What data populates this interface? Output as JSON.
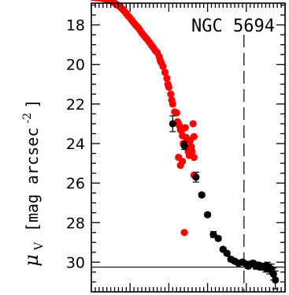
{
  "chart_data": {
    "type": "scatter",
    "title": "NGC 5694",
    "ylabel": {
      "symbol": "μ",
      "subscript": "V",
      "unit": "[mag arcsec",
      "exponent": "-2",
      "close": "]"
    },
    "yticks": [
      "18",
      "20",
      "22",
      "24",
      "26",
      "28",
      "30"
    ],
    "ytick_values": [
      18,
      20,
      22,
      24,
      26,
      28,
      30
    ],
    "ylim": [
      16.9,
      31.5
    ],
    "y_inverted": true,
    "xlim": [
      0,
      1
    ],
    "x_tick_labels": "none",
    "reference_lines": {
      "horizontal_y": 30.25,
      "vertical_dashed_x": 0.788
    },
    "colors": {
      "series_a": "#ff0000",
      "series_b": "#000000"
    },
    "series": [
      {
        "color": "#ff0000",
        "points": [
          [
            0.005,
            16.6
          ],
          [
            0.015,
            16.61
          ],
          [
            0.025,
            16.62
          ],
          [
            0.035,
            16.63
          ],
          [
            0.045,
            16.63
          ],
          [
            0.055,
            16.65
          ],
          [
            0.065,
            16.67
          ],
          [
            0.075,
            16.7
          ],
          [
            0.085,
            16.72
          ],
          [
            0.095,
            16.75
          ],
          [
            0.105,
            16.8
          ],
          [
            0.115,
            16.86
          ],
          [
            0.125,
            16.93
          ],
          [
            0.135,
            17.0
          ],
          [
            0.15,
            17.1
          ],
          [
            0.16,
            17.2
          ],
          [
            0.17,
            17.3
          ],
          [
            0.18,
            17.42
          ],
          [
            0.19,
            17.55
          ],
          [
            0.2,
            17.65
          ],
          [
            0.21,
            17.78
          ],
          [
            0.22,
            17.9
          ],
          [
            0.23,
            18.02
          ],
          [
            0.24,
            18.12
          ],
          [
            0.25,
            18.25
          ],
          [
            0.26,
            18.4
          ],
          [
            0.27,
            18.52
          ],
          [
            0.28,
            18.65
          ],
          [
            0.29,
            18.75
          ],
          [
            0.3,
            18.88
          ],
          [
            0.31,
            19.02
          ],
          [
            0.32,
            19.15
          ],
          [
            0.33,
            19.3
          ],
          [
            0.34,
            19.4
          ],
          [
            0.35,
            19.6
          ],
          [
            0.355,
            19.78
          ],
          [
            0.36,
            19.9
          ],
          [
            0.37,
            20.1
          ],
          [
            0.38,
            20.4
          ],
          [
            0.39,
            20.7
          ],
          [
            0.395,
            21.0
          ],
          [
            0.4,
            21.15
          ],
          [
            0.41,
            21.5
          ],
          [
            0.415,
            21.8
          ],
          [
            0.42,
            22.0
          ],
          [
            0.43,
            22.4
          ],
          [
            0.44,
            22.45
          ],
          [
            0.445,
            22.9
          ],
          [
            0.45,
            23.0
          ],
          [
            0.455,
            23.1
          ],
          [
            0.46,
            23.3
          ],
          [
            0.465,
            23.35
          ],
          [
            0.47,
            23.6
          ],
          [
            0.475,
            24.0
          ],
          [
            0.48,
            24.05
          ],
          [
            0.485,
            23.2
          ],
          [
            0.49,
            23.7
          ],
          [
            0.495,
            24.2
          ],
          [
            0.5,
            24.4
          ],
          [
            0.505,
            24.6
          ],
          [
            0.51,
            23.85
          ],
          [
            0.515,
            24.15
          ],
          [
            0.52,
            24.4
          ],
          [
            0.525,
            23.0
          ],
          [
            0.53,
            23.65
          ],
          [
            0.45,
            24.7
          ],
          [
            0.46,
            25.1
          ],
          [
            0.47,
            24.9
          ],
          [
            0.53,
            24.7
          ],
          [
            0.53,
            25.6
          ],
          [
            0.48,
            28.5
          ]
        ]
      },
      {
        "color": "#000000",
        "error_bars": true,
        "points": [
          [
            0.42,
            23.0,
            0.4
          ],
          [
            0.48,
            24.1,
            0.2
          ],
          [
            0.54,
            25.7,
            0.25
          ],
          [
            0.57,
            26.6,
            0.1
          ],
          [
            0.6,
            27.6,
            0.1
          ],
          [
            0.63,
            28.6,
            0.15
          ],
          [
            0.655,
            28.8,
            0.1
          ],
          [
            0.68,
            29.35,
            0.1
          ],
          [
            0.7,
            29.55,
            0.1
          ],
          [
            0.72,
            29.85,
            0.1
          ],
          [
            0.74,
            29.95,
            0.1
          ],
          [
            0.76,
            30.05,
            0.12
          ],
          [
            0.78,
            30.0,
            0.12
          ],
          [
            0.8,
            30.1,
            0.12
          ],
          [
            0.81,
            30.2,
            0.12
          ],
          [
            0.82,
            30.1,
            0.12
          ],
          [
            0.835,
            30.05,
            0.12
          ],
          [
            0.85,
            30.2,
            0.15
          ],
          [
            0.86,
            30.15,
            0.15
          ],
          [
            0.875,
            30.25,
            0.15
          ],
          [
            0.89,
            30.2,
            0.15
          ],
          [
            0.9,
            30.3,
            0.2
          ],
          [
            0.91,
            30.2,
            0.2
          ],
          [
            0.92,
            30.35,
            0.25
          ],
          [
            0.93,
            30.35,
            0.25
          ],
          [
            0.94,
            30.6,
            0.3
          ],
          [
            0.95,
            30.9,
            0.45
          ]
        ]
      }
    ]
  }
}
